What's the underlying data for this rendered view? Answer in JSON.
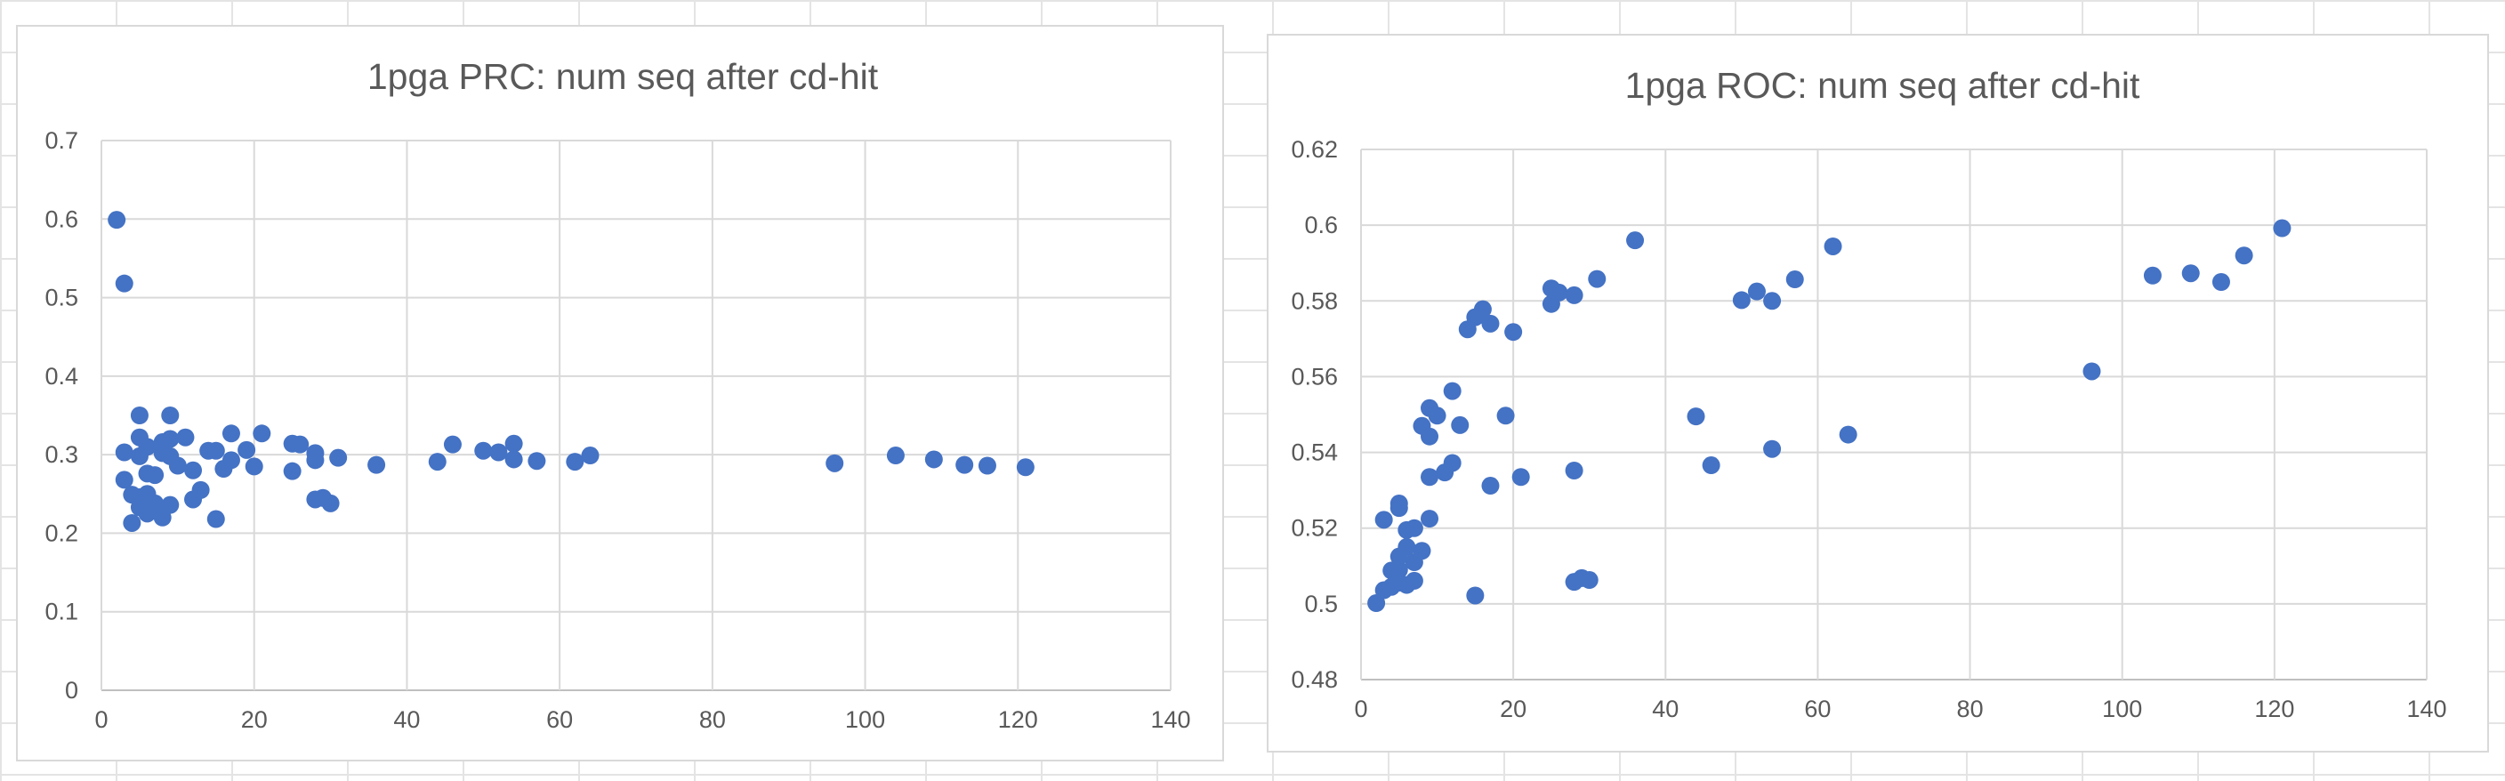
{
  "colors": {
    "marker": "#4472c4",
    "gridline": "#d9d9d9",
    "text": "#595959"
  },
  "chart_data": [
    {
      "type": "scatter",
      "title": "1pga PRC: num seq after cd-hit",
      "xlabel": "",
      "ylabel": "",
      "xlim": [
        0,
        140
      ],
      "ylim": [
        0,
        0.7
      ],
      "xticks": [
        0,
        20,
        40,
        60,
        80,
        100,
        120,
        140
      ],
      "yticks": [
        0,
        0.1,
        0.2,
        0.3,
        0.4,
        0.5,
        0.6,
        0.7
      ],
      "xtick_labels": [
        "0",
        "20",
        "40",
        "60",
        "80",
        "100",
        "120",
        "140"
      ],
      "ytick_labels": [
        "0",
        "0.1",
        "0.2",
        "0.3",
        "0.4",
        "0.5",
        "0.6",
        "0.7"
      ],
      "grid": true,
      "legend": "none",
      "series": [
        {
          "points": [
            [
              2,
              0.599
            ],
            [
              3,
              0.518
            ],
            [
              3,
              0.303
            ],
            [
              3,
              0.268
            ],
            [
              4,
              0.249
            ],
            [
              4,
              0.213
            ],
            [
              5,
              0.35
            ],
            [
              5,
              0.322
            ],
            [
              5,
              0.298
            ],
            [
              5,
              0.246
            ],
            [
              5,
              0.233
            ],
            [
              6,
              0.31
            ],
            [
              6,
              0.276
            ],
            [
              6,
              0.25
            ],
            [
              6,
              0.24
            ],
            [
              6,
              0.225
            ],
            [
              7,
              0.274
            ],
            [
              7,
              0.238
            ],
            [
              7,
              0.229
            ],
            [
              8,
              0.316
            ],
            [
              8,
              0.302
            ],
            [
              8,
              0.22
            ],
            [
              9,
              0.35
            ],
            [
              9,
              0.32
            ],
            [
              9,
              0.298
            ],
            [
              9,
              0.236
            ],
            [
              10,
              0.286
            ],
            [
              11,
              0.322
            ],
            [
              12,
              0.28
            ],
            [
              12,
              0.243
            ],
            [
              13,
              0.255
            ],
            [
              14,
              0.305
            ],
            [
              15,
              0.305
            ],
            [
              15,
              0.218
            ],
            [
              16,
              0.282
            ],
            [
              17,
              0.327
            ],
            [
              17,
              0.293
            ],
            [
              19,
              0.306
            ],
            [
              20,
              0.285
            ],
            [
              21,
              0.327
            ],
            [
              25,
              0.314
            ],
            [
              25,
              0.279
            ],
            [
              26,
              0.313
            ],
            [
              28,
              0.302
            ],
            [
              28,
              0.293
            ],
            [
              28,
              0.243
            ],
            [
              29,
              0.245
            ],
            [
              30,
              0.238
            ],
            [
              31,
              0.296
            ],
            [
              36,
              0.287
            ],
            [
              44,
              0.291
            ],
            [
              46,
              0.313
            ],
            [
              50,
              0.305
            ],
            [
              52,
              0.303
            ],
            [
              54,
              0.314
            ],
            [
              54,
              0.294
            ],
            [
              57,
              0.292
            ],
            [
              62,
              0.291
            ],
            [
              64,
              0.299
            ],
            [
              96,
              0.289
            ],
            [
              104,
              0.299
            ],
            [
              109,
              0.294
            ],
            [
              113,
              0.287
            ],
            [
              116,
              0.286
            ],
            [
              121,
              0.284
            ]
          ]
        }
      ]
    },
    {
      "type": "scatter",
      "title": "1pga ROC: num seq after cd-hit",
      "xlabel": "",
      "ylabel": "",
      "xlim": [
        0,
        140
      ],
      "ylim": [
        0.48,
        0.62
      ],
      "xticks": [
        0,
        20,
        40,
        60,
        80,
        100,
        120,
        140
      ],
      "yticks": [
        0.48,
        0.5,
        0.52,
        0.54,
        0.56,
        0.58,
        0.6,
        0.62
      ],
      "xtick_labels": [
        "0",
        "20",
        "40",
        "60",
        "80",
        "100",
        "120",
        "140"
      ],
      "ytick_labels": [
        "0.48",
        "0.5",
        "0.52",
        "0.54",
        "0.56",
        "0.58",
        "0.6",
        "0.62"
      ],
      "grid": true,
      "legend": "none",
      "series": [
        {
          "points": [
            [
              2,
              0.5002
            ],
            [
              3,
              0.5222
            ],
            [
              3,
              0.5036
            ],
            [
              4,
              0.5045
            ],
            [
              4,
              0.5088
            ],
            [
              5,
              0.5265
            ],
            [
              5,
              0.5253
            ],
            [
              5,
              0.5125
            ],
            [
              5,
              0.509
            ],
            [
              5,
              0.5056
            ],
            [
              6,
              0.5195
            ],
            [
              6,
              0.515
            ],
            [
              6,
              0.505
            ],
            [
              7,
              0.52
            ],
            [
              7,
              0.511
            ],
            [
              7,
              0.5061
            ],
            [
              8,
              0.547
            ],
            [
              8,
              0.514
            ],
            [
              9,
              0.5517
            ],
            [
              9,
              0.5442
            ],
            [
              9,
              0.5335
            ],
            [
              9,
              0.5225
            ],
            [
              10,
              0.5497
            ],
            [
              11,
              0.5347
            ],
            [
              12,
              0.5562
            ],
            [
              12,
              0.5372
            ],
            [
              13,
              0.5472
            ],
            [
              14,
              0.5725
            ],
            [
              15,
              0.5757
            ],
            [
              15,
              0.5022
            ],
            [
              16,
              0.5778
            ],
            [
              17,
              0.574
            ],
            [
              17,
              0.5312
            ],
            [
              19,
              0.5497
            ],
            [
              20,
              0.5718
            ],
            [
              21,
              0.5335
            ],
            [
              25,
              0.5833
            ],
            [
              25,
              0.5792
            ],
            [
              26,
              0.5822
            ],
            [
              28,
              0.5815
            ],
            [
              28,
              0.5352
            ],
            [
              28,
              0.5058
            ],
            [
              29,
              0.5068
            ],
            [
              30,
              0.5063
            ],
            [
              31,
              0.5858
            ],
            [
              36,
              0.596
            ],
            [
              44,
              0.5495
            ],
            [
              46,
              0.5366
            ],
            [
              50,
              0.5802
            ],
            [
              52,
              0.5825
            ],
            [
              54,
              0.58
            ],
            [
              54,
              0.5409
            ],
            [
              57,
              0.5857
            ],
            [
              62,
              0.5944
            ],
            [
              64,
              0.5447
            ],
            [
              96,
              0.5614
            ],
            [
              104,
              0.5867
            ],
            [
              109,
              0.5873
            ],
            [
              113,
              0.585
            ],
            [
              116,
              0.592
            ],
            [
              121,
              0.5992
            ]
          ]
        }
      ]
    }
  ]
}
